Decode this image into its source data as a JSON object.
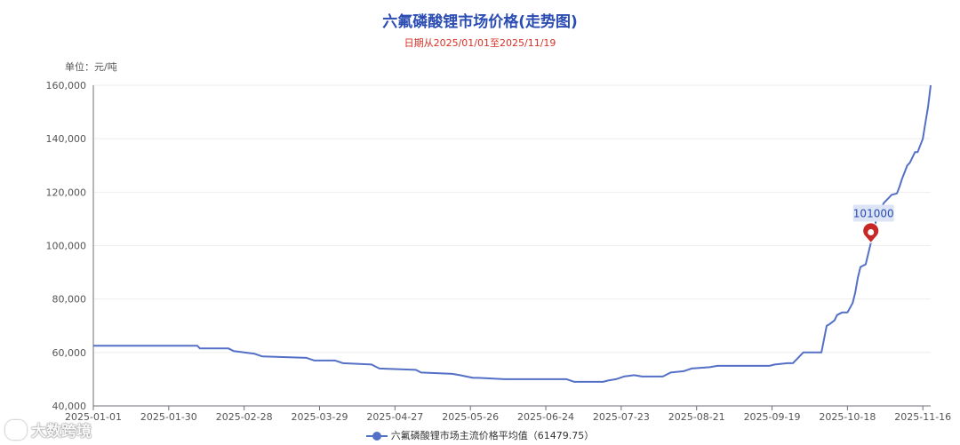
{
  "chart_data": {
    "type": "line",
    "title": "六氟磷酸锂市场价格(走势图)",
    "subtitle": "日期从2025/01/01至2025/11/19",
    "ylabel": "单位：元/吨",
    "xlabel": "",
    "ylim": [
      40000,
      160000
    ],
    "yticks": [
      40000,
      60000,
      80000,
      100000,
      120000,
      140000,
      160000
    ],
    "ytick_labels": [
      "40,000",
      "60,000",
      "80,000",
      "100,000",
      "120,000",
      "140,000",
      "160,000"
    ],
    "xlim": [
      "2025-01-01",
      "2025-11-19"
    ],
    "xtick_labels": [
      "2025-01-01",
      "2025-01-30",
      "2025-02-28",
      "2025-03-29",
      "2025-04-27",
      "2025-05-26",
      "2025-06-24",
      "2025-07-23",
      "2025-08-21",
      "2025-09-19",
      "2025-10-18",
      "2025-11-16"
    ],
    "grid": true,
    "legend_position": "bottom",
    "series": [
      {
        "name": "六氟磷酸锂市场主流价格平均值",
        "legend_label": "六氟磷酸锂市场主流价格平均值（61479.75）",
        "color": "#5470c6",
        "x": [
          "2025-01-01",
          "2025-02-10",
          "2025-02-11",
          "2025-02-22",
          "2025-02-24",
          "2025-03-04",
          "2025-03-07",
          "2025-03-24",
          "2025-03-27",
          "2025-04-04",
          "2025-04-07",
          "2025-04-18",
          "2025-04-21",
          "2025-05-05",
          "2025-05-07",
          "2025-05-19",
          "2025-05-22",
          "2025-05-27",
          "2025-05-29",
          "2025-06-08",
          "2025-06-11",
          "2025-07-02",
          "2025-07-05",
          "2025-07-16",
          "2025-07-18",
          "2025-07-21",
          "2025-07-24",
          "2025-07-28",
          "2025-07-31",
          "2025-08-08",
          "2025-08-11",
          "2025-08-16",
          "2025-08-19",
          "2025-08-26",
          "2025-08-29",
          "2025-09-18",
          "2025-09-20",
          "2025-09-25",
          "2025-09-27",
          "2025-09-29",
          "2025-10-01",
          "2025-10-08",
          "2025-10-10",
          "2025-10-11",
          "2025-10-13",
          "2025-10-14",
          "2025-10-16",
          "2025-10-18",
          "2025-10-20",
          "2025-10-21",
          "2025-10-22",
          "2025-10-23",
          "2025-10-24",
          "2025-10-25",
          "2025-10-27",
          "2025-10-28",
          "2025-10-29",
          "2025-10-30",
          "2025-11-01",
          "2025-11-02",
          "2025-11-04",
          "2025-11-06",
          "2025-11-07",
          "2025-11-08",
          "2025-11-10",
          "2025-11-11",
          "2025-11-13",
          "2025-11-14",
          "2025-11-16",
          "2025-11-17",
          "2025-11-18",
          "2025-11-19"
        ],
        "values": [
          62500,
          62500,
          61500,
          61500,
          60500,
          59500,
          58500,
          58000,
          57000,
          57000,
          56000,
          55500,
          54000,
          53500,
          52500,
          52000,
          51500,
          50500,
          50500,
          50000,
          50000,
          50000,
          49000,
          49000,
          49500,
          50000,
          51000,
          51500,
          51000,
          51000,
          52500,
          53000,
          54000,
          54500,
          55000,
          55000,
          55500,
          56000,
          56000,
          58000,
          60000,
          60000,
          70000,
          70500,
          72000,
          74000,
          75000,
          75000,
          78500,
          82500,
          88000,
          92000,
          92500,
          93000,
          101000,
          103000,
          110000,
          112000,
          116000,
          117000,
          119000,
          119500,
          122000,
          125000,
          130000,
          131000,
          135000,
          135000,
          140000,
          146000,
          152000,
          160000
        ]
      }
    ],
    "annotations": [
      {
        "text": "101000",
        "type": "pin",
        "x": "2025-10-27",
        "y": 101000
      }
    ]
  }
}
